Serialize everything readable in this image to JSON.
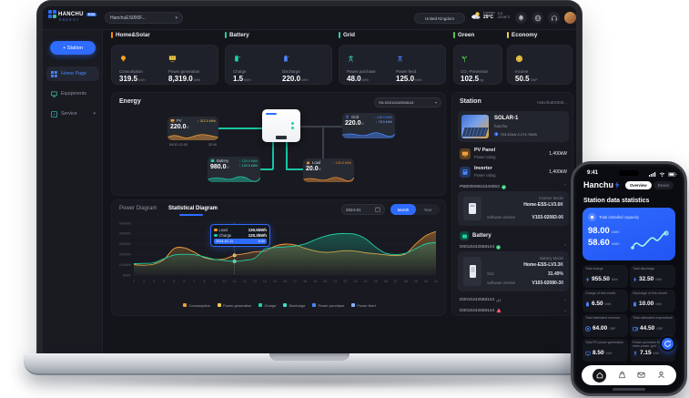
{
  "chart_data": {
    "type": "area",
    "title": "Statistical Diagram",
    "x": [
      1,
      2,
      3,
      4,
      5,
      6,
      7,
      8,
      9,
      10,
      11,
      12,
      13,
      14,
      15,
      16,
      17,
      18,
      19,
      20,
      21,
      22,
      23,
      24,
      25,
      26,
      27,
      28,
      29,
      30,
      31
    ],
    "ylim": [
      0,
      500
    ],
    "yticks": [
      {
        "v": 0,
        "label": "0kWh"
      },
      {
        "v": 100,
        "label": "100kWh"
      },
      {
        "v": 200,
        "label": "200kWh"
      },
      {
        "v": 300,
        "label": "300kWh"
      },
      {
        "v": 400,
        "label": "400kWh"
      },
      {
        "v": 500,
        "label": "500kWh"
      }
    ],
    "cursor_index": 10,
    "series": [
      {
        "name": "Consumption",
        "color": "#f49d37",
        "fill_opacity": 0.4,
        "values": [
          100,
          95,
          105,
          150,
          255,
          262,
          220,
          168,
          150,
          155,
          190,
          205,
          225,
          232,
          278,
          298,
          290,
          258,
          232,
          218,
          225,
          235,
          230,
          215,
          205,
          195,
          188,
          205,
          300,
          380,
          420
        ]
      },
      {
        "name": "Charge",
        "color": "#1fd0a8",
        "fill_opacity": 0.3,
        "values": [
          110,
          112,
          118,
          158,
          192,
          200,
          196,
          176,
          152,
          140,
          132,
          142,
          162,
          250,
          265,
          270,
          280,
          300,
          340,
          375,
          395,
          400,
          392,
          350,
          270,
          210,
          198,
          210,
          255,
          300,
          315
        ]
      }
    ],
    "legend": [
      {
        "label": "Consumption",
        "color": "#f49d37"
      },
      {
        "label": "Power generation",
        "color": "#f2c94c"
      },
      {
        "label": "Charge",
        "color": "#1fd0a8"
      },
      {
        "label": "Discharge",
        "color": "#38e1c6"
      },
      {
        "label": "Power purchase",
        "color": "#4a86ff"
      },
      {
        "label": "Power feed",
        "color": "#86b1ff"
      }
    ]
  },
  "laptop": {
    "logo": {
      "brand": "HANCHU",
      "badge": "ESS",
      "tagline": "ENERGY"
    },
    "topbar": {
      "station_selector": "HanchuES000F...",
      "country": "United Kingdom",
      "weather_city": "London",
      "weather_temp": "29°C",
      "weather_rain": "9.5",
      "weather_range": "22/16°C"
    },
    "sidebar": {
      "station_button": "+ Station",
      "items": [
        {
          "label": "Home Page"
        },
        {
          "label": "Equipments"
        },
        {
          "label": "Service"
        }
      ]
    },
    "kpis": [
      {
        "title": "Home&Solar",
        "metrics": [
          {
            "label": "Consumption",
            "value": "319.5",
            "unit": "kWh"
          },
          {
            "label": "Power generation",
            "value": "8,319.0",
            "unit": "kWh"
          }
        ]
      },
      {
        "title": "Battery",
        "metrics": [
          {
            "label": "Charge",
            "value": "1.5",
            "unit": "kWh"
          },
          {
            "label": "Discharge",
            "value": "220.0",
            "unit": "kWh"
          }
        ]
      },
      {
        "title": "Grid",
        "metrics": [
          {
            "label": "Power purchase",
            "value": "48.0",
            "unit": "kWh"
          },
          {
            "label": "Power feed",
            "value": "125.0",
            "unit": "kWh"
          }
        ]
      },
      {
        "title": "Green",
        "metrics": [
          {
            "label": "CO₂ Prevention",
            "value": "102.5",
            "unit": "kg"
          }
        ]
      },
      {
        "title": "Economy",
        "metrics": [
          {
            "label": "Income",
            "value": "50.5",
            "unit": "GBP"
          }
        ]
      }
    ],
    "energy": {
      "title": "Energy",
      "sn_selector": "SN  D0010442558144",
      "pv": {
        "label": "PV",
        "value": "220.0",
        "unit": "W",
        "stat": "↑ 312.0 kWh",
        "time": "09/10 12:00",
        "power": "20 W"
      },
      "grid": {
        "label": "Grid",
        "value": "220.0",
        "unit": "W",
        "stat1": "↑ 188.0 kWh",
        "stat2": "↓ 78.5 kWh"
      },
      "battery": {
        "label": "Battery",
        "value": "980.0",
        "unit": "W",
        "stat1": "↑ 120.0 kWh",
        "stat2": "↓ 120.0 kWh"
      },
      "load": {
        "label": "Load",
        "value": "20.0",
        "unit": "W",
        "stat": "↑ 130.5 kWh"
      }
    },
    "chart": {
      "tab_power": "Power Diagram",
      "tab_statistical": "Statistical Diagram",
      "date": "2024-01",
      "toggle_month": "Month",
      "toggle_year": "Year",
      "tooltip": {
        "rows": [
          {
            "label": "Load",
            "value": "130.5kWh",
            "color": "#f49d37"
          },
          {
            "label": "Charge",
            "value": "120.3kWh",
            "color": "#1fd0a8"
          }
        ],
        "date": "2024-01-11",
        "time": "8:00"
      }
    },
    "station_panel": {
      "title": "Station",
      "selector": "HanchuES000...",
      "station": {
        "name": "SOLAR-1",
        "owner": "hanchu",
        "stats": "703.52kW  2,274.7kWh"
      },
      "pv_panel": {
        "name": "PV Panel",
        "sub": "Power rating",
        "value": "1,400kW"
      },
      "inverter": {
        "name": "Inverter",
        "sub": "Power rating",
        "value": "1,400kW"
      },
      "inverter_sn": "PB80006815340063",
      "inverter_detail": {
        "model_label": "Inverter Model",
        "model": "Home-ESS-LV3.6K",
        "sw_label": "Software version",
        "sw": "V103-02083-06"
      },
      "battery_title": "Battery",
      "battery_sn": "D0010442558144",
      "battery_detail": {
        "model_label": "Battery Model",
        "model": "Home-ESS-LV3.3K",
        "soc_label": "SoC",
        "soc": "31.49%",
        "sw_label": "Software version",
        "sw": "V103-02080-30"
      },
      "sn_row_offline": "D0010442558144",
      "sn_row_alarm": "D0010442558144"
    }
  },
  "phone": {
    "time": "9:41",
    "brand": "Hanchu",
    "tab_overview": "Overview",
    "tab_device": "Device",
    "section_title": "Station data statistics",
    "hero": {
      "label": "Total installed capacity",
      "value1": "98.00",
      "unit1": "kWh",
      "value2": "58.60",
      "unit2": "kWh"
    },
    "stats": [
      {
        "label": "Total charge",
        "value": "955.50",
        "unit": "kWh"
      },
      {
        "label": "Total discharge",
        "value": "32.50",
        "unit": "kWh"
      },
      {
        "label": "Charge of this month",
        "value": "6.50",
        "unit": "kWh"
      },
      {
        "label": "Discharge of this month",
        "value": "10.00",
        "unit": "kWh"
      },
      {
        "label": "Total estimated revenue",
        "value": "64.00",
        "unit": "GBP"
      },
      {
        "label": "Total estimated expenditure",
        "value": "44.50",
        "unit": "GBP"
      },
      {
        "label": "Total PV power generation",
        "value": "8.50",
        "unit": "kWh"
      },
      {
        "label": "Power purchase from the main power grid",
        "value": "7.15",
        "unit": "kWh"
      }
    ]
  }
}
